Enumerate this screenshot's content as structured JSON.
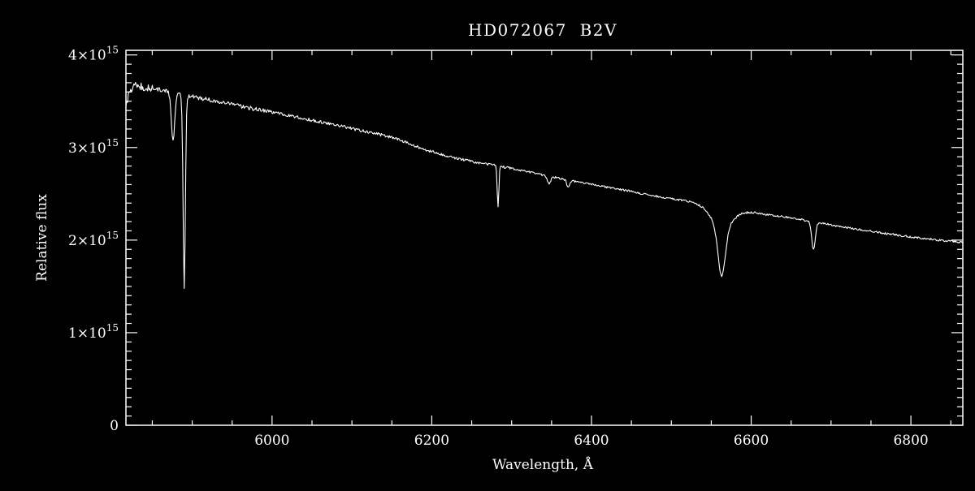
{
  "page": {
    "background": "#000000"
  },
  "chart_data": {
    "type": "line",
    "title": "HD072067  B2V",
    "xlabel": "Wavelength, Å",
    "ylabel": "Relative flux",
    "line_color": "#ffffff",
    "axis_color": "#ffffff",
    "background_color": "#000000",
    "grid": false,
    "legend": false,
    "xlim": [
      5817,
      6865
    ],
    "ylim": [
      0,
      4050000000000000.0
    ],
    "flux_unit": 1000000000000000.0,
    "x_major_ticks": [
      {
        "value": 6000,
        "label": "6000"
      },
      {
        "value": 6200,
        "label": "6200"
      },
      {
        "value": 6400,
        "label": "6400"
      },
      {
        "value": 6600,
        "label": "6600"
      },
      {
        "value": 6800,
        "label": "6800"
      }
    ],
    "x_minor_step": 50,
    "y_major_ticks": [
      {
        "value": 0,
        "base": "0",
        "exp": ""
      },
      {
        "value": 1000000000000000.0,
        "base": "1×10",
        "exp": "15"
      },
      {
        "value": 2000000000000000.0,
        "base": "2×10",
        "exp": "15"
      },
      {
        "value": 3000000000000000.0,
        "base": "3×10",
        "exp": "15"
      },
      {
        "value": 4000000000000000.0,
        "base": "4×10",
        "exp": "15"
      }
    ],
    "y_minor_step": 100000000000000.0,
    "series": [
      {
        "sample_step_angstrom": 1,
        "continuum": [
          [
            5817,
            3.42
          ],
          [
            5821,
            3.6
          ],
          [
            5827,
            3.67
          ],
          [
            5835,
            3.66
          ],
          [
            5845,
            3.645
          ],
          [
            5858,
            3.625
          ],
          [
            5872,
            3.6
          ],
          [
            5886,
            3.575
          ],
          [
            5900,
            3.55
          ],
          [
            5915,
            3.525
          ],
          [
            5930,
            3.5
          ],
          [
            5950,
            3.465
          ],
          [
            5970,
            3.43
          ],
          [
            5990,
            3.4
          ],
          [
            6010,
            3.365
          ],
          [
            6030,
            3.33
          ],
          [
            6050,
            3.295
          ],
          [
            6070,
            3.26
          ],
          [
            6090,
            3.225
          ],
          [
            6110,
            3.185
          ],
          [
            6130,
            3.15
          ],
          [
            6150,
            3.11
          ],
          [
            6170,
            3.05
          ],
          [
            6190,
            2.98
          ],
          [
            6210,
            2.93
          ],
          [
            6230,
            2.885
          ],
          [
            6250,
            2.85
          ],
          [
            6270,
            2.82
          ],
          [
            6290,
            2.79
          ],
          [
            6310,
            2.755
          ],
          [
            6330,
            2.72
          ],
          [
            6350,
            2.685
          ],
          [
            6370,
            2.65
          ],
          [
            6390,
            2.615
          ],
          [
            6410,
            2.585
          ],
          [
            6430,
            2.555
          ],
          [
            6450,
            2.525
          ],
          [
            6470,
            2.49
          ],
          [
            6490,
            2.46
          ],
          [
            6510,
            2.435
          ],
          [
            6530,
            2.405
          ],
          [
            6550,
            2.375
          ],
          [
            6570,
            2.345
          ],
          [
            6590,
            2.315
          ],
          [
            6610,
            2.29
          ],
          [
            6630,
            2.265
          ],
          [
            6650,
            2.24
          ],
          [
            6670,
            2.21
          ],
          [
            6690,
            2.18
          ],
          [
            6710,
            2.15
          ],
          [
            6730,
            2.12
          ],
          [
            6750,
            2.095
          ],
          [
            6770,
            2.07
          ],
          [
            6790,
            2.045
          ],
          [
            6810,
            2.025
          ],
          [
            6835,
            2.0
          ],
          [
            6865,
            1.975
          ]
        ],
        "absorption_lines": [
          {
            "center": 5876,
            "depth": 0.5,
            "sigma": 2.2
          },
          {
            "center": 5890,
            "depth": 2.1,
            "sigma": 1.4
          },
          {
            "center": 6283,
            "depth": 0.45,
            "sigma": 1.0
          },
          {
            "center": 6347,
            "depth": 0.08,
            "sigma": 2.0
          },
          {
            "center": 6371,
            "depth": 0.07,
            "sigma": 2.0
          },
          {
            "center": 6563,
            "depth": 0.52,
            "sigma": 4.5
          },
          {
            "center": 6563,
            "depth": 0.22,
            "sigma": 13.0
          },
          {
            "center": 6678,
            "depth": 0.3,
            "sigma": 2.2
          }
        ],
        "noise_profile": [
          {
            "up_to": 5850,
            "amp": 0.04
          },
          {
            "up_to": 5990,
            "amp": 0.022
          },
          {
            "up_to": 6150,
            "amp": 0.016
          },
          {
            "up_to": 6300,
            "amp": 0.014
          },
          {
            "up_to": 6865,
            "amp": 0.011
          }
        ]
      }
    ]
  }
}
